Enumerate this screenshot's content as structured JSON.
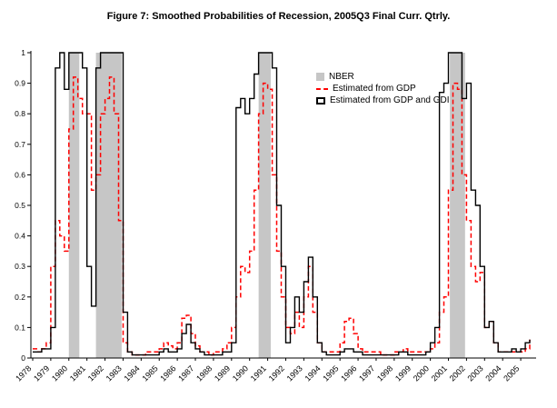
{
  "chart_data": {
    "type": "line",
    "title": "Figure 7: Smoothed Probabilities of Recession, 2005Q3 Final Curr. Qtrly.",
    "xlabel": "",
    "ylabel": "",
    "xlim": [
      1977.9,
      2005.85
    ],
    "ylim": [
      0,
      1
    ],
    "y_tick_labels": [
      "0",
      "0.1",
      "0.2",
      "0.3",
      "0.4",
      "0.5",
      "0.6",
      "0.7",
      "0.8",
      "0.9",
      "1"
    ],
    "x_ticks": [
      1978,
      1979,
      1980,
      1981,
      1982,
      1983,
      1984,
      1985,
      1986,
      1987,
      1988,
      1989,
      1990,
      1991,
      1992,
      1993,
      1994,
      1995,
      1996,
      1997,
      1998,
      1999,
      2000,
      2001,
      2002,
      2003,
      2004,
      2005
    ],
    "x_start": 1978,
    "x_step": 0.25,
    "grid": false,
    "legend_position": "upper-center-right",
    "nber_bands": {
      "label": "NBER",
      "color": "#c6c6c6",
      "spans": [
        [
          1980.0,
          1980.58
        ],
        [
          1981.5,
          1982.92
        ],
        [
          1990.5,
          1991.17
        ],
        [
          2001.08,
          2001.92
        ]
      ]
    },
    "series": [
      {
        "name": "Estimated from GDP",
        "color": "#ff0000",
        "style": "dashed",
        "width": 1.5,
        "values": [
          0.03,
          0.02,
          0.03,
          0.05,
          0.3,
          0.45,
          0.4,
          0.35,
          0.75,
          0.92,
          0.85,
          0.8,
          0.8,
          0.55,
          0.6,
          0.8,
          0.85,
          0.92,
          0.8,
          0.45,
          0.05,
          0.02,
          0.01,
          0.01,
          0.01,
          0.02,
          0.02,
          0.02,
          0.03,
          0.05,
          0.04,
          0.03,
          0.05,
          0.13,
          0.14,
          0.08,
          0.04,
          0.02,
          0.02,
          0.01,
          0.02,
          0.02,
          0.03,
          0.05,
          0.1,
          0.2,
          0.3,
          0.28,
          0.35,
          0.55,
          0.8,
          0.9,
          0.88,
          0.6,
          0.35,
          0.2,
          0.1,
          0.08,
          0.15,
          0.1,
          0.2,
          0.3,
          0.15,
          0.05,
          0.02,
          0.02,
          0.02,
          0.02,
          0.05,
          0.12,
          0.13,
          0.08,
          0.03,
          0.02,
          0.02,
          0.02,
          0.02,
          0.01,
          0.01,
          0.01,
          0.02,
          0.02,
          0.03,
          0.02,
          0.02,
          0.02,
          0.02,
          0.02,
          0.03,
          0.05,
          0.15,
          0.2,
          0.55,
          0.9,
          0.88,
          0.6,
          0.45,
          0.3,
          0.25,
          0.28,
          0.1,
          0.12,
          0.05,
          0.02,
          0.02,
          0.02,
          0.02,
          0.02,
          0.02,
          0.03,
          0.06
        ]
      },
      {
        "name": "Estimated from GDP and GDI",
        "color": "#000000",
        "style": "solid",
        "width": 1.4,
        "values": [
          0.02,
          0.02,
          0.03,
          0.03,
          0.1,
          0.95,
          1.0,
          0.88,
          1.0,
          1.0,
          1.0,
          0.95,
          0.3,
          0.17,
          0.95,
          1.0,
          1.0,
          1.0,
          1.0,
          1.0,
          0.15,
          0.02,
          0.01,
          0.01,
          0.01,
          0.01,
          0.01,
          0.01,
          0.02,
          0.03,
          0.02,
          0.02,
          0.03,
          0.08,
          0.11,
          0.05,
          0.03,
          0.02,
          0.01,
          0.01,
          0.01,
          0.01,
          0.02,
          0.02,
          0.05,
          0.82,
          0.85,
          0.8,
          0.85,
          0.93,
          1.0,
          1.0,
          1.0,
          0.95,
          0.5,
          0.3,
          0.05,
          0.1,
          0.2,
          0.15,
          0.25,
          0.33,
          0.2,
          0.05,
          0.02,
          0.01,
          0.01,
          0.01,
          0.02,
          0.03,
          0.03,
          0.02,
          0.02,
          0.01,
          0.01,
          0.01,
          0.01,
          0.01,
          0.01,
          0.01,
          0.01,
          0.02,
          0.02,
          0.01,
          0.01,
          0.01,
          0.01,
          0.02,
          0.05,
          0.1,
          0.87,
          0.9,
          1.0,
          1.0,
          1.0,
          0.85,
          0.9,
          0.55,
          0.5,
          0.3,
          0.1,
          0.12,
          0.05,
          0.02,
          0.02,
          0.02,
          0.03,
          0.02,
          0.03,
          0.05,
          0.06
        ]
      }
    ]
  }
}
